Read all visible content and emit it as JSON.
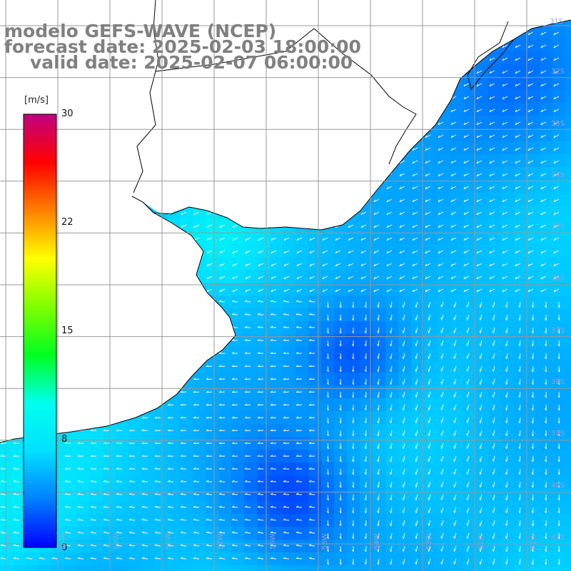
{
  "title": {
    "line1": "modelo GEFS-WAVE (NCEP)",
    "line2": "forecast date: 2025-02-03 18:00:00",
    "line3": "valid date: 2025-02-07 06:00:00"
  },
  "colorbar": {
    "unit": "[m/s]",
    "min": 0,
    "max": 30,
    "ticks": [
      {
        "value": 30,
        "label": "30"
      },
      {
        "value": 22,
        "label": "22"
      },
      {
        "value": 15,
        "label": "15"
      },
      {
        "value": 8,
        "label": "8"
      },
      {
        "value": 0,
        "label": "0"
      }
    ],
    "colors": [
      "#0000ff",
      "#0080ff",
      "#00e0ff",
      "#00ffee",
      "#00ff20",
      "#80ff00",
      "#ffff00",
      "#ff8000",
      "#ff0000",
      "#c00080"
    ]
  },
  "lat_labels": [
    "31S",
    "32S",
    "33S",
    "34S",
    "35S",
    "36S",
    "37S",
    "38S",
    "39S",
    "40S",
    "41S"
  ],
  "lon_labels": [
    "61W",
    "60W",
    "59W",
    "58W",
    "57W",
    "56W",
    "55W",
    "54W",
    "53W",
    "52W",
    "51W"
  ],
  "colors": {
    "grid": "#999999",
    "land": "#ffffff",
    "coast": "#000000",
    "arrows": "#ffffff",
    "labels": "#9aa0c8"
  }
}
